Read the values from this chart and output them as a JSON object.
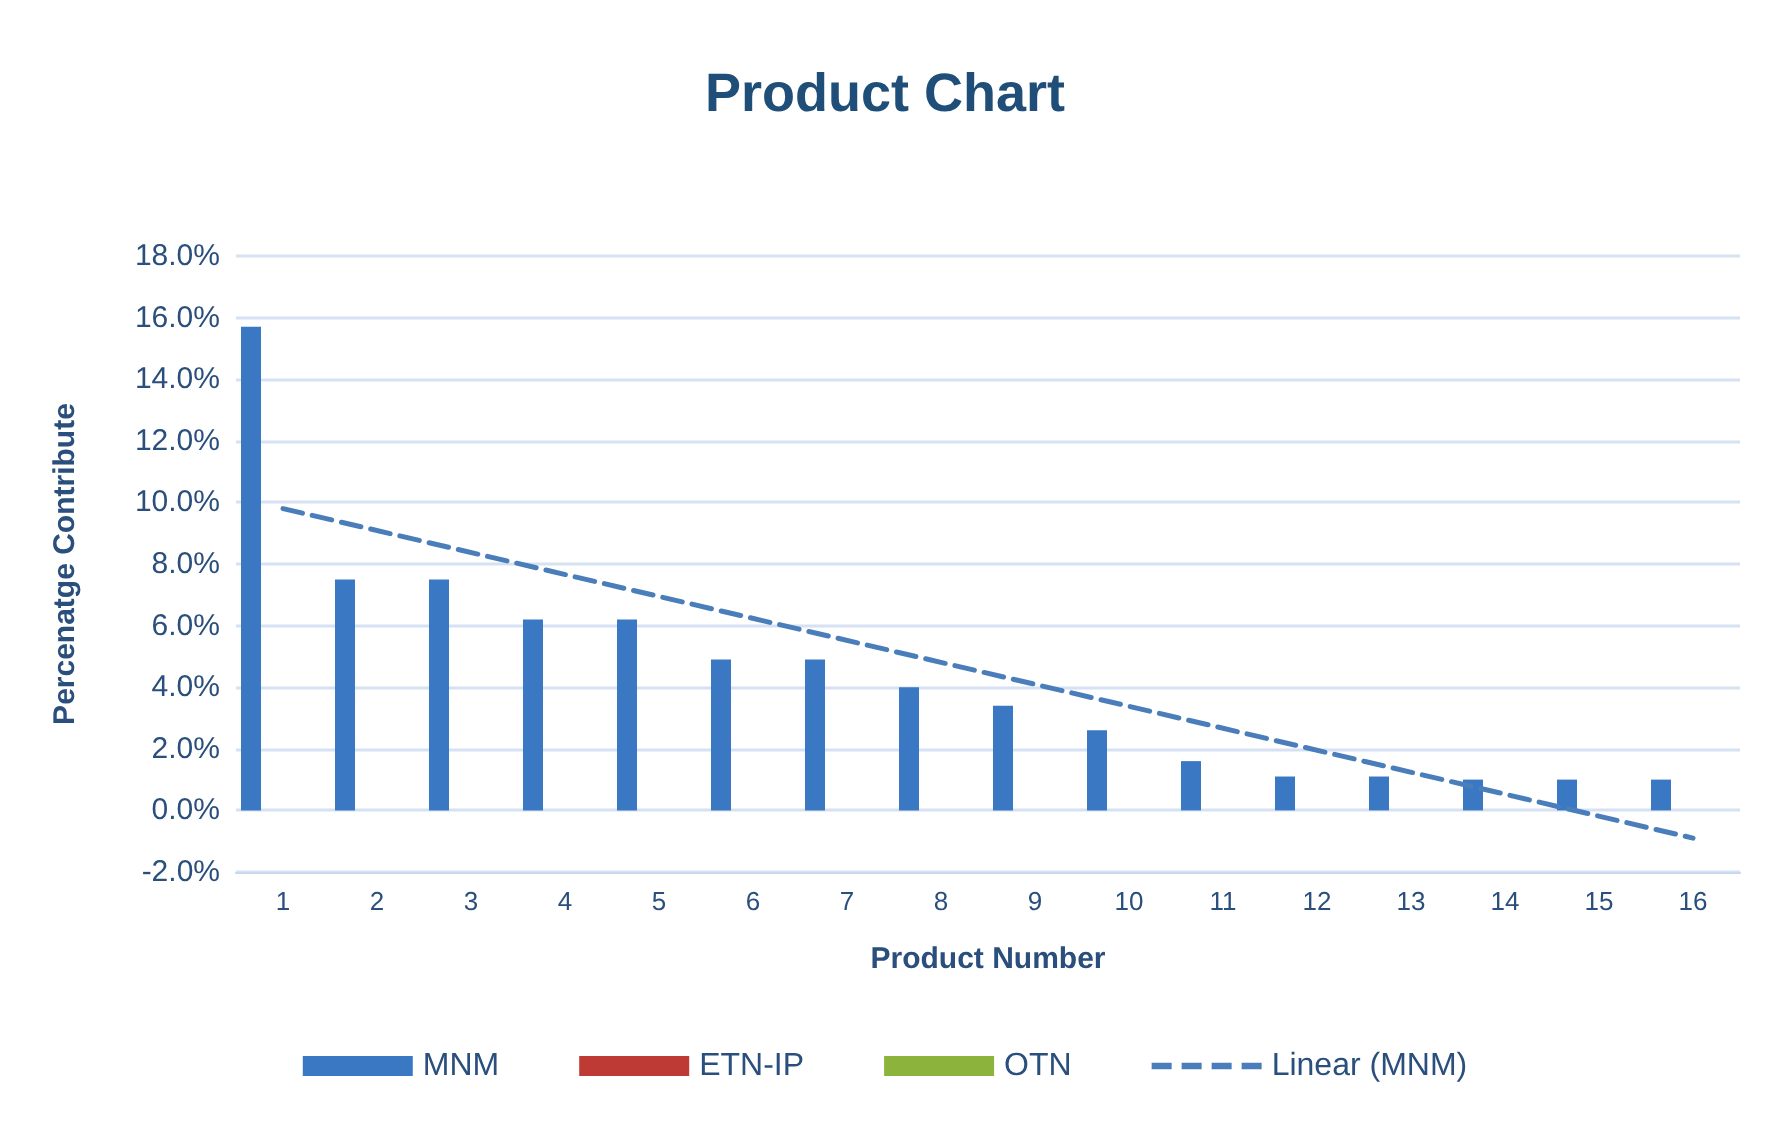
{
  "chart_data": {
    "type": "bar",
    "title": "Product Chart",
    "xlabel": "Product Number",
    "ylabel": "Percenatge Contribute",
    "x": [
      1,
      2,
      3,
      4,
      5,
      6,
      7,
      8,
      9,
      10,
      11,
      12,
      13,
      14,
      15,
      16
    ],
    "series": [
      {
        "name": "MNM",
        "color": "#3a78c4",
        "values": [
          15.7,
          7.5,
          7.5,
          6.2,
          6.2,
          4.9,
          4.9,
          4.0,
          3.4,
          2.6,
          1.6,
          1.1,
          1.1,
          1.0,
          1.0,
          1.0
        ]
      },
      {
        "name": "ETN-IP",
        "color": "#be3a34",
        "values": [
          null,
          null,
          null,
          null,
          null,
          null,
          null,
          null,
          null,
          null,
          null,
          null,
          null,
          null,
          null,
          null
        ]
      },
      {
        "name": "OTN",
        "color": "#8cb43c",
        "values": [
          null,
          null,
          null,
          null,
          null,
          null,
          null,
          null,
          null,
          null,
          null,
          null,
          null,
          null,
          null,
          null
        ]
      },
      {
        "name": "Linear (MNM)",
        "type": "line",
        "color": "#4a7ebb",
        "x": [
          1,
          16
        ],
        "values": [
          9.8,
          -0.9
        ],
        "line_style": "dashed",
        "marker": "none"
      }
    ],
    "xlim": [
      0.5,
      16.5
    ],
    "xticks": [
      1,
      2,
      3,
      4,
      5,
      6,
      7,
      8,
      9,
      10,
      11,
      12,
      13,
      14,
      15,
      16
    ],
    "ylim": [
      -2,
      18
    ],
    "yticks": [
      {
        "value": -2,
        "label": "-2.0%"
      },
      {
        "value": 0,
        "label": "0.0%"
      },
      {
        "value": 2,
        "label": "2.0%"
      },
      {
        "value": 4,
        "label": "4.0%"
      },
      {
        "value": 6,
        "label": "6.0%"
      },
      {
        "value": 8,
        "label": "8.0%"
      },
      {
        "value": 10,
        "label": "10.0%"
      },
      {
        "value": 12,
        "label": "12.0%"
      },
      {
        "value": 14,
        "label": "14.0%"
      },
      {
        "value": 16,
        "label": "16.0%"
      },
      {
        "value": 18,
        "label": "18.0%"
      }
    ],
    "grid": "y",
    "legend": "bottom"
  }
}
